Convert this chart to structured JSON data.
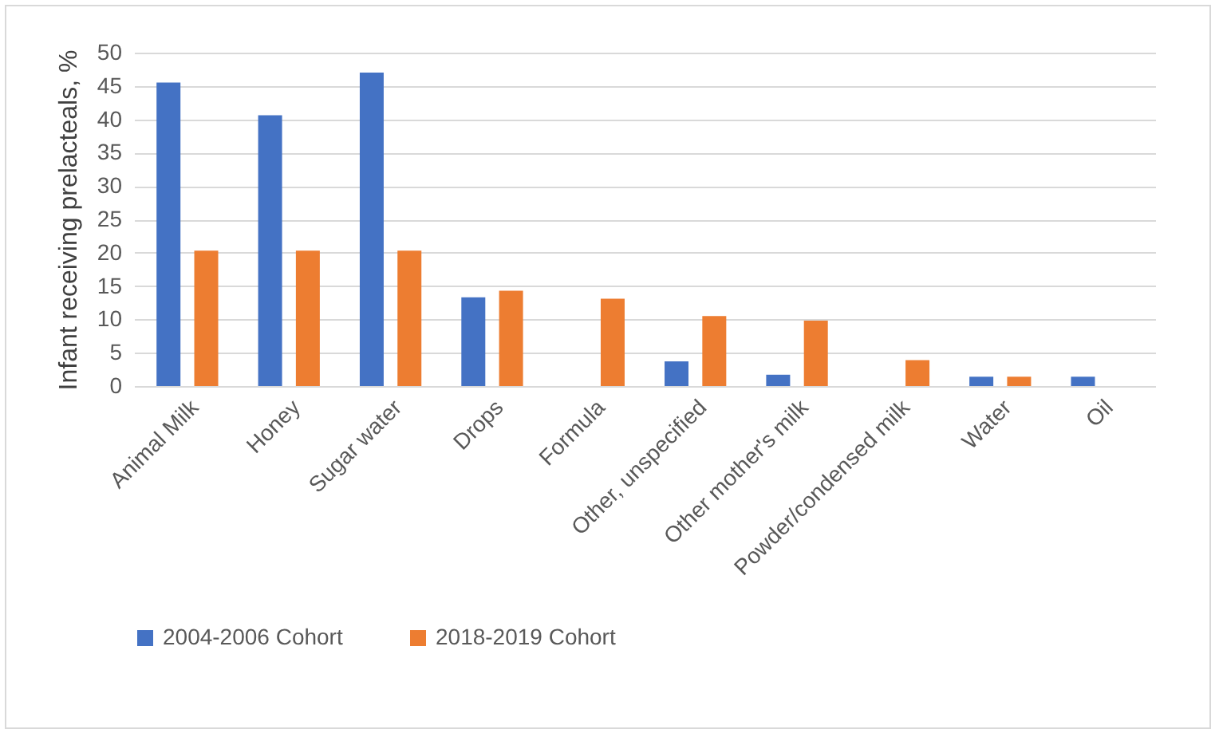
{
  "chart_data": {
    "type": "bar",
    "ylabel": "Infant receiving prelacteals, %",
    "categories": [
      "Animal Milk",
      "Honey",
      "Sugar water",
      "Drops",
      "Formula",
      "Other, unspecified",
      "Other mother's milk",
      "Powder/condensed milk",
      "Water",
      "Oil"
    ],
    "series": [
      {
        "name": "2004-2006 Cohort",
        "color": "#4472c4",
        "values": [
          45.5,
          40.6,
          47.0,
          13.3,
          null,
          3.7,
          1.7,
          null,
          1.4,
          1.4
        ]
      },
      {
        "name": "2018-2019 Cohort",
        "color": "#ed7d31",
        "values": [
          20.3,
          20.3,
          20.3,
          14.3,
          13.1,
          10.5,
          9.8,
          3.9,
          1.4,
          null
        ]
      }
    ],
    "ylim": [
      0,
      50
    ],
    "yticks": [
      0,
      5,
      10,
      15,
      20,
      25,
      30,
      35,
      40,
      45,
      50
    ],
    "grid": "y",
    "legend": "bottom"
  }
}
